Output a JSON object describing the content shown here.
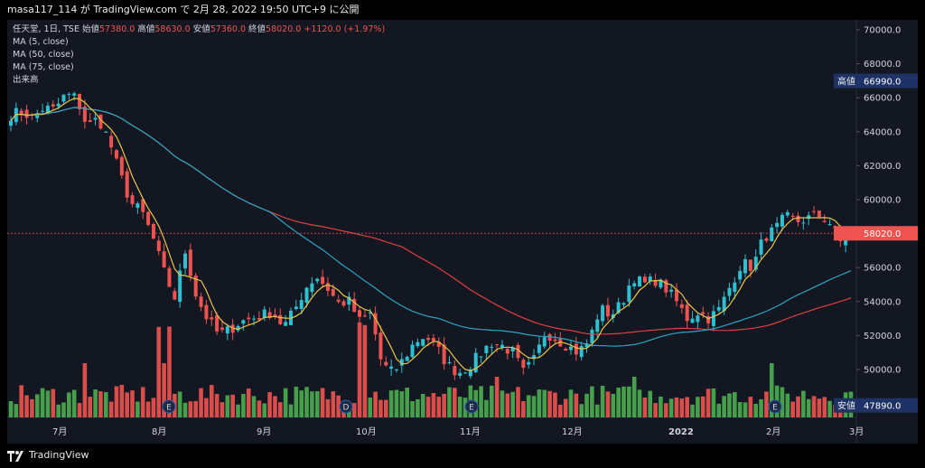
{
  "header": {
    "caption": "masa117_114 が TradingView.com で 2月 28, 2022 19:50 UTC+9 に公開"
  },
  "legend": {
    "symbol": "任天堂, 1日, TSE",
    "ohlc": [
      {
        "label": "始値",
        "value": "57380.0"
      },
      {
        "label": "高値",
        "value": "58630.0"
      },
      {
        "label": "安値",
        "value": "57360.0"
      },
      {
        "label": "終値",
        "value": "58020.0"
      }
    ],
    "change": "+1120.0 (+1.97%)",
    "studies": [
      "MA (5, close)",
      "MA (50, close)",
      "MA (75, close)",
      "出来高"
    ]
  },
  "price_tags": {
    "high": {
      "label": "高値",
      "value": "66990.0"
    },
    "last": {
      "value": "58020.0"
    },
    "low": {
      "label": "安値",
      "value": "47890.0"
    }
  },
  "footer": {
    "brand": "TradingView"
  },
  "colors": {
    "up": "#26a69a",
    "up_body": "#2dc0d0",
    "down": "#ef5350",
    "ma5": "#e8c547",
    "ma50": "#2aa6c4",
    "ma75": "#e04040",
    "vol_up": "#4caf50",
    "vol_down": "#ef5350",
    "background": "#131722",
    "tag_blue": "#1e3266"
  },
  "chart_data": {
    "type": "candlestick",
    "title": "任天堂, 1日, TSE",
    "y_axis": {
      "ticks": [
        50000,
        52000,
        54000,
        56000,
        58000,
        60000,
        62000,
        64000,
        66000,
        68000,
        70000
      ],
      "tick_labels": [
        "50000.0",
        "52000.0",
        "54000.0",
        "56000.0",
        "58000.0",
        "60000.0",
        "62000.0",
        "64000.0",
        "66000.0",
        "68000.0",
        "70000.0"
      ],
      "range": [
        48000,
        70500
      ]
    },
    "x_axis": {
      "labels": [
        "7月",
        "8月",
        "9月",
        "10月",
        "11月",
        "12月",
        "2022",
        "2月",
        "3月"
      ]
    },
    "event_markers": [
      {
        "label": "E",
        "month": "8月"
      },
      {
        "label": "D",
        "month": "10月"
      },
      {
        "label": "E",
        "month": "11月"
      },
      {
        "label": "E",
        "month": "2月"
      }
    ],
    "last_close": 58020.0,
    "period_high": 66990.0,
    "period_low": 47890.0,
    "close_path": [
      65000,
      65200,
      64800,
      65400,
      65300,
      66200,
      66000,
      64300,
      64800,
      63500,
      61500,
      59800,
      59300,
      57800,
      55800,
      54200,
      57000,
      54300,
      53000,
      52100,
      52300,
      52800,
      53000,
      53200,
      53400,
      52500,
      53500,
      54800,
      55500,
      54800,
      53900,
      54000,
      52800,
      53300,
      50300,
      49800,
      50600,
      51600,
      52000,
      51300,
      50300,
      49800,
      50200,
      50900,
      51600,
      51400,
      51000,
      49800,
      50600,
      52200,
      51800,
      51400,
      51000,
      51700,
      53600,
      53200,
      53900,
      55500,
      55000,
      55300,
      54800,
      54000,
      53000,
      53400,
      53000,
      53600,
      55000,
      56300,
      56000,
      57800,
      58200,
      59000,
      58700,
      58900,
      59100,
      58700,
      57500,
      58020
    ],
    "close_path_note": "",
    "ma5": "short moving average tracking close",
    "ma50": "",
    "ma75": ""
  }
}
